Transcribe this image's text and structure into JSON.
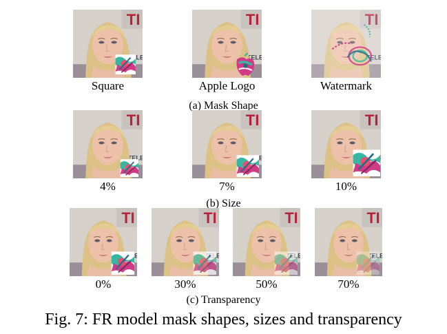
{
  "row_a": {
    "labels": [
      "Square",
      "Apple Logo",
      "Watermark"
    ],
    "caption": "(a) Mask Shape"
  },
  "row_b": {
    "labels": [
      "4%",
      "7%",
      "10%"
    ],
    "caption": "(b) Size"
  },
  "row_c": {
    "labels": [
      "0%",
      "30%",
      "50%",
      "70%"
    ],
    "caption": "(c) Transparency"
  },
  "figure_caption": "Fig. 7: FR model mask shapes, sizes and transparency",
  "background_sign_text": "TELE",
  "colors": {
    "hair": "#dcc187",
    "skin": "#edc1a9",
    "background": "#d8d2cc",
    "accent_red": "#b5223a",
    "mask_teal": "#37b7a3",
    "mask_pink": "#d03a87"
  }
}
